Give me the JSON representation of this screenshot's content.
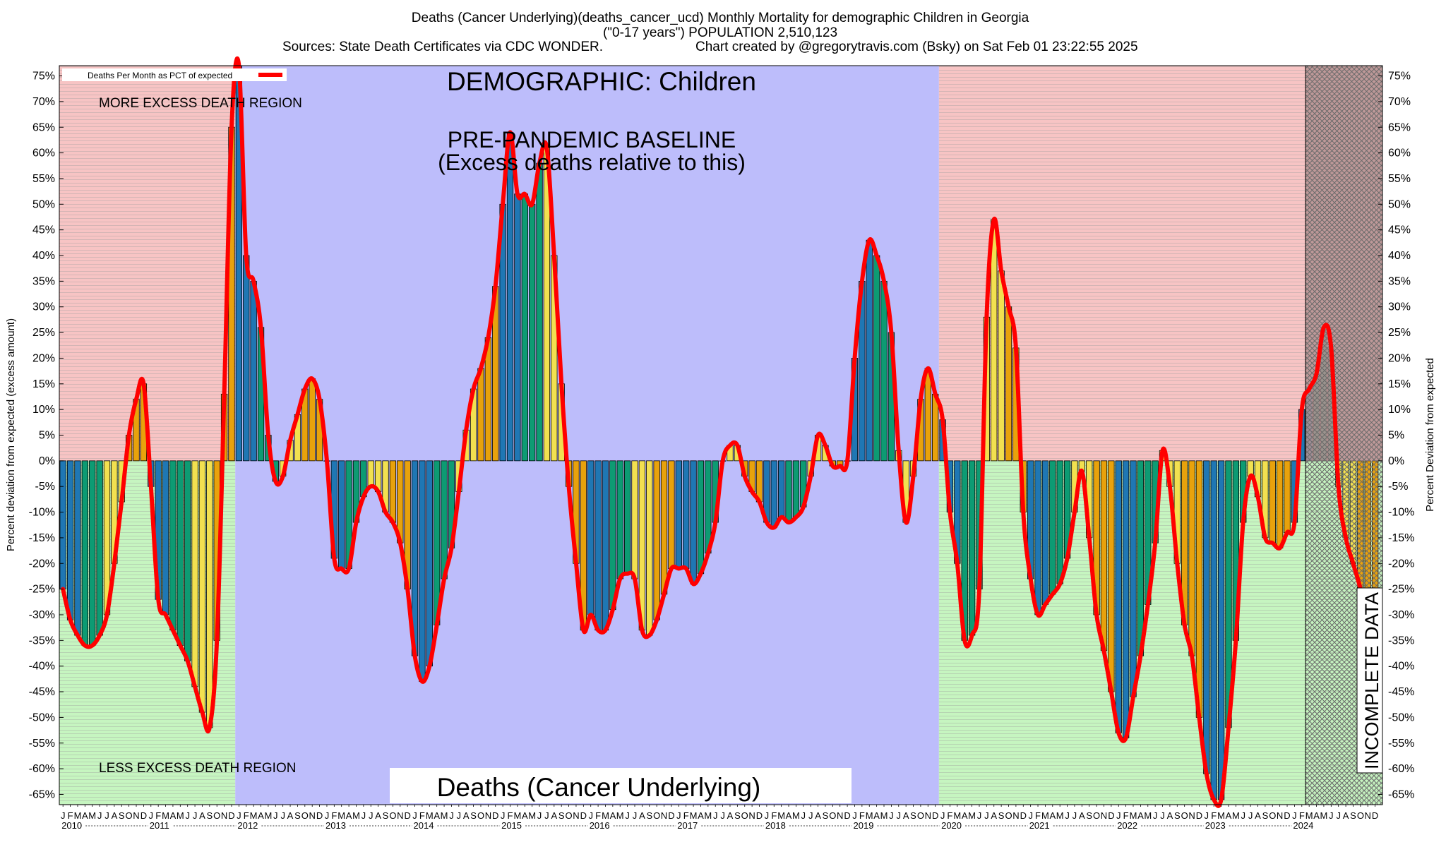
{
  "title": {
    "line1": "Deaths (Cancer Underlying)(deaths_cancer_ucd) Monthly Mortality for demographic Children in Georgia",
    "line2": "(\"0-17 years\") POPULATION 2,510,123",
    "line3a": "Sources: State Death Certificates via CDC WONDER.",
    "line3b": "Chart created by @gregorytravis.com (Bsky) on Sat Feb 01 23:22:55 2025"
  },
  "labels": {
    "legend": "Deaths Per Month as PCT of expected",
    "demographic": "DEMOGRAPHIC: Children",
    "baseline1": "PRE-PANDEMIC BASELINE",
    "baseline2": "(Excess deaths relative to this)",
    "more_region": "MORE EXCESS DEATH REGION",
    "less_region": "LESS EXCESS DEATH REGION",
    "bottom_title": "Deaths (Cancer Underlying)",
    "incomplete": "INCOMPLETE DATA",
    "ylabel_left": "Percent deviation from expected (excess amount)",
    "ylabel_right": "Percent Deviation from expected"
  },
  "colors": {
    "more_region": "#f7c4c4",
    "less_region": "#c6f5c0",
    "baseline_region": "#bdbdfb",
    "line": "#ff0000",
    "bar_cycle": [
      "#1f77b4",
      "#0d9b73",
      "#f2e050",
      "#e8a20c"
    ],
    "hatch": "#8a8a8a"
  },
  "chart_data": {
    "type": "bar",
    "title": "Deaths (Cancer Underlying)(deaths_cancer_ucd) Monthly Mortality for demographic Children in Georgia",
    "ylabel": "Percent deviation from expected (excess amount)",
    "ylabel_right": "Percent Deviation from expected",
    "ylim": [
      -67,
      77
    ],
    "yticks": [
      -65,
      -60,
      -55,
      -50,
      -45,
      -40,
      -35,
      -30,
      -25,
      -20,
      -15,
      -10,
      -5,
      0,
      5,
      10,
      15,
      20,
      25,
      30,
      35,
      40,
      45,
      50,
      55,
      60,
      65,
      70,
      75
    ],
    "grid": false,
    "legend_position": "top-left",
    "series_name": "Deaths Per Month as PCT of expected",
    "start": "2010-01",
    "years": [
      "2010",
      "2011",
      "2012",
      "2013",
      "2014",
      "2015",
      "2016",
      "2017",
      "2018",
      "2019",
      "2020",
      "2021",
      "2022",
      "2023",
      "2024"
    ],
    "month_letters": [
      "J",
      "F",
      "M",
      "A",
      "M",
      "J",
      "J",
      "A",
      "S",
      "O",
      "N",
      "D"
    ],
    "baseline_period": [
      "2012-01",
      "2019-12"
    ],
    "incomplete_from": "2024-03",
    "values": [
      -25,
      -31,
      -34,
      -36,
      -36,
      -34,
      -30,
      -20,
      -8,
      5,
      12,
      15,
      -5,
      -27,
      -30,
      -33,
      -36,
      -39,
      -44,
      -49,
      -52,
      -35,
      13,
      65,
      77,
      40,
      35,
      26,
      5,
      -4,
      -3,
      4,
      9,
      14,
      16,
      12,
      0,
      -19,
      -21,
      -21,
      -12,
      -7,
      -5,
      -6,
      -10,
      -12,
      -16,
      -25,
      -38,
      -43,
      -40,
      -32,
      -23,
      -17,
      -6,
      6,
      14,
      18,
      24,
      34,
      50,
      64,
      52,
      52,
      50,
      58,
      61,
      40,
      15,
      -5,
      -20,
      -33,
      -30,
      -33,
      -33,
      -29,
      -23,
      -22,
      -23,
      -33,
      -34,
      -31,
      -26,
      -21,
      -21,
      -21,
      -24,
      -22,
      -18,
      -12,
      0,
      3,
      3,
      -3,
      -6,
      -8,
      -12,
      -13,
      -11,
      -12,
      -11,
      -9,
      -3,
      5,
      3,
      -1,
      -1,
      0,
      20,
      35,
      43,
      40,
      35,
      25,
      2,
      -12,
      -3,
      12,
      18,
      13,
      8,
      -10,
      -20,
      -35,
      -34,
      -25,
      28,
      47,
      37,
      30,
      22,
      -10,
      -23,
      -30,
      -28,
      -26,
      -24,
      -19,
      -10,
      -2,
      -15,
      -30,
      -37,
      -45,
      -53,
      -54,
      -46,
      -38,
      -28,
      -16,
      2,
      -5,
      -20,
      -32,
      -38,
      -50,
      -61,
      -66,
      -66,
      -52,
      -35,
      -12,
      -3,
      -7,
      -15,
      -16,
      -17,
      -14,
      -12,
      10,
      14,
      17,
      26,
      22,
      -5,
      -15,
      -20,
      -25,
      -32,
      -32
    ]
  }
}
